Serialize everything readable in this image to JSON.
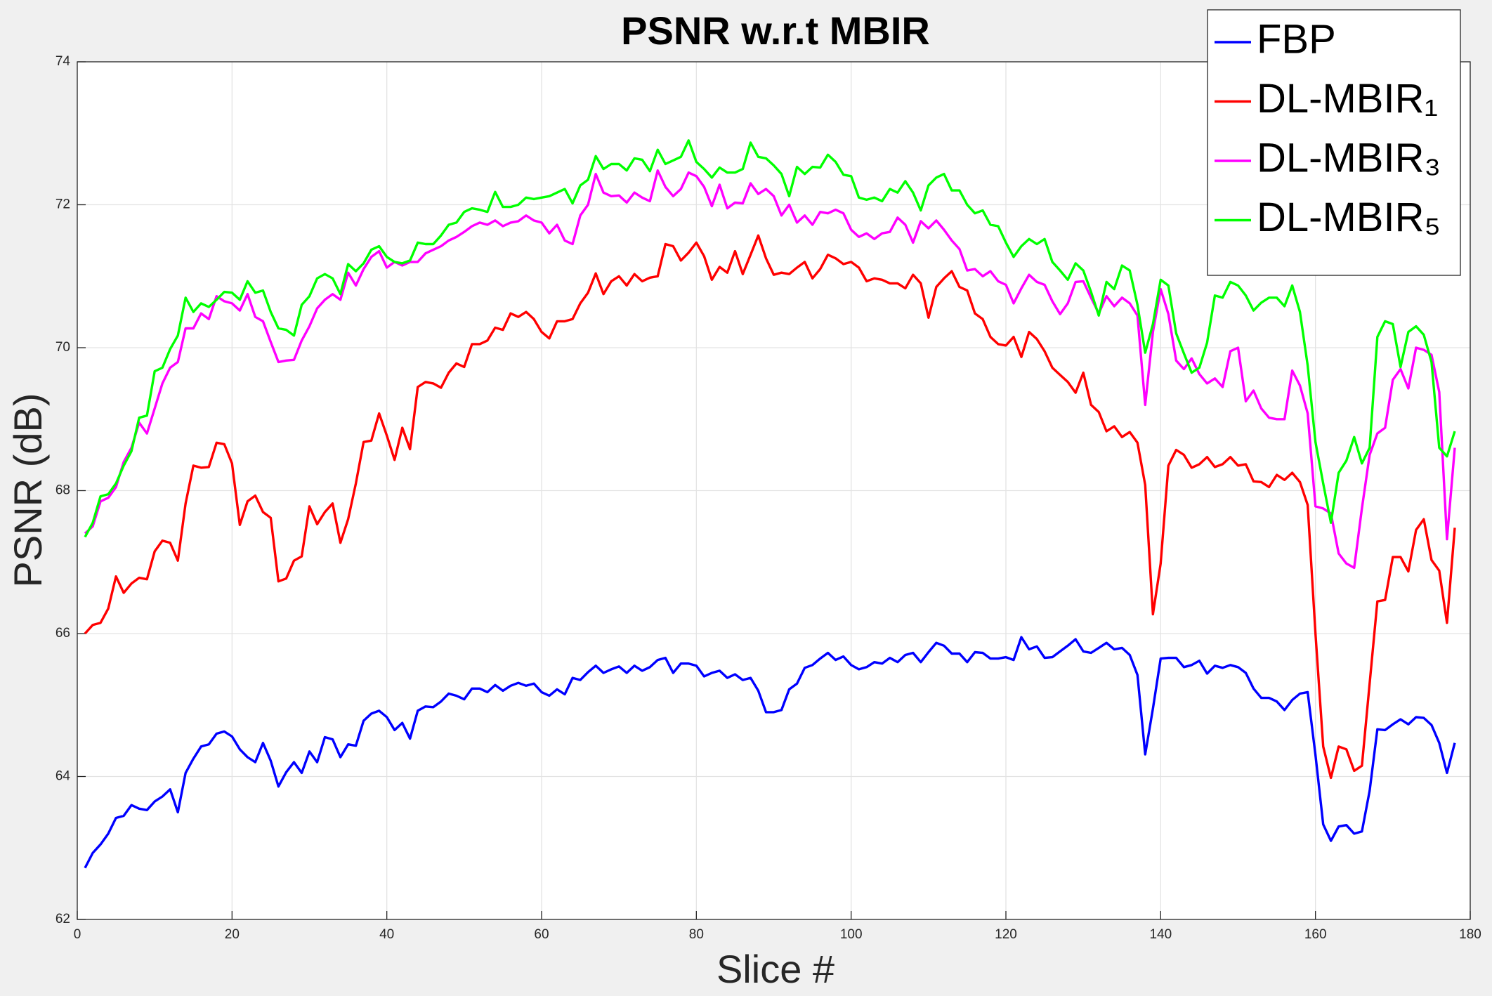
{
  "chart_data": {
    "type": "line",
    "title": "PSNR w.r.t MBIR",
    "xlabel": "Slice #",
    "ylabel": "PSNR (dB)",
    "xlim": [
      0,
      180
    ],
    "ylim": [
      62,
      74
    ],
    "xticks": [
      0,
      20,
      40,
      60,
      80,
      100,
      120,
      140,
      160,
      180
    ],
    "yticks": [
      62,
      64,
      66,
      68,
      70,
      72,
      74
    ],
    "grid": true,
    "legend": "northeast",
    "x": [
      1,
      2,
      3,
      4,
      5,
      6,
      7,
      8,
      9,
      10,
      11,
      12,
      13,
      14,
      15,
      16,
      17,
      18,
      19,
      20,
      21,
      22,
      23,
      24,
      25,
      26,
      27,
      28,
      29,
      30,
      31,
      32,
      33,
      34,
      35,
      36,
      37,
      38,
      39,
      40,
      41,
      42,
      43,
      44,
      45,
      46,
      47,
      48,
      49,
      50,
      51,
      52,
      53,
      54,
      55,
      56,
      57,
      58,
      59,
      60,
      61,
      62,
      63,
      64,
      65,
      66,
      67,
      68,
      69,
      70,
      71,
      72,
      73,
      74,
      75,
      76,
      77,
      78,
      79,
      80,
      81,
      82,
      83,
      84,
      85,
      86,
      87,
      88,
      89,
      90,
      91,
      92,
      93,
      94,
      95,
      96,
      97,
      98,
      99,
      100,
      101,
      102,
      103,
      104,
      105,
      106,
      107,
      108,
      109,
      110,
      111,
      112,
      113,
      114,
      115,
      116,
      117,
      118,
      119,
      120,
      121,
      122,
      123,
      124,
      125,
      126,
      127,
      128,
      129,
      130,
      131,
      132,
      133,
      134,
      135,
      136,
      137,
      138,
      139,
      140,
      141,
      142,
      143,
      144,
      145,
      146,
      147,
      148,
      149,
      150,
      151,
      152,
      153,
      154,
      155,
      156,
      157,
      158,
      159,
      160,
      161,
      162,
      163,
      164,
      165,
      166,
      167,
      168,
      169,
      170,
      171,
      172,
      173,
      174,
      175,
      176,
      177,
      178
    ],
    "series": [
      {
        "name": "FBP",
        "color": "#0000ff",
        "values": [
          62.72,
          62.93,
          63.05,
          63.2,
          63.42,
          63.45,
          63.6,
          63.55,
          63.53,
          63.65,
          63.72,
          63.82,
          63.5,
          64.05,
          64.25,
          64.42,
          64.45,
          64.6,
          64.63,
          64.56,
          64.38,
          64.27,
          64.2,
          64.47,
          64.22,
          63.86,
          64.06,
          64.2,
          64.05,
          64.35,
          64.2,
          64.55,
          64.52,
          64.27,
          64.45,
          64.43,
          64.78,
          64.88,
          64.92,
          64.83,
          64.65,
          64.75,
          64.53,
          64.92,
          64.98,
          64.97,
          65.05,
          65.16,
          65.13,
          65.08,
          65.23,
          65.23,
          65.18,
          65.28,
          65.2,
          65.27,
          65.31,
          65.27,
          65.3,
          65.18,
          65.13,
          65.22,
          65.15,
          65.38,
          65.35,
          65.46,
          65.55,
          65.45,
          65.5,
          65.54,
          65.45,
          65.55,
          65.48,
          65.53,
          65.63,
          65.66,
          65.45,
          65.58,
          65.58,
          65.55,
          65.4,
          65.45,
          65.48,
          65.38,
          65.43,
          65.35,
          65.38,
          65.2,
          64.9,
          64.9,
          64.93,
          65.22,
          65.3,
          65.52,
          65.56,
          65.65,
          65.73,
          65.63,
          65.68,
          65.56,
          65.5,
          65.53,
          65.6,
          65.58,
          65.66,
          65.6,
          65.7,
          65.73,
          65.6,
          65.74,
          65.87,
          65.83,
          65.72,
          65.72,
          65.6,
          65.74,
          65.73,
          65.65,
          65.65,
          65.67,
          65.63,
          65.95,
          65.78,
          65.82,
          65.66,
          65.67,
          65.75,
          65.83,
          65.92,
          65.75,
          65.73,
          65.8,
          65.87,
          65.78,
          65.8,
          65.7,
          65.42,
          64.31,
          64.95,
          65.65,
          65.66,
          65.66,
          65.53,
          65.56,
          65.62,
          65.44,
          65.55,
          65.52,
          65.56,
          65.53,
          65.45,
          65.23,
          65.1,
          65.1,
          65.05,
          64.93,
          65.07,
          65.16,
          65.18,
          64.3,
          63.33,
          63.1,
          63.3,
          63.32,
          63.2,
          63.23,
          63.8,
          64.66,
          64.65,
          64.73,
          64.8,
          64.73,
          64.83,
          64.82,
          64.72,
          64.47,
          64.05,
          64.47
        ]
      },
      {
        "name": "DL-MBIR₁",
        "color": "#ff0000",
        "values": [
          66.0,
          66.12,
          66.15,
          66.35,
          66.8,
          66.57,
          66.7,
          66.78,
          66.76,
          67.15,
          67.3,
          67.27,
          67.02,
          67.82,
          68.35,
          68.32,
          68.33,
          68.67,
          68.65,
          68.38,
          67.52,
          67.85,
          67.93,
          67.7,
          67.62,
          66.73,
          66.77,
          67.02,
          67.08,
          67.78,
          67.53,
          67.7,
          67.82,
          67.27,
          67.6,
          68.1,
          68.68,
          68.7,
          69.08,
          68.77,
          68.43,
          68.88,
          68.58,
          69.45,
          69.52,
          69.5,
          69.44,
          69.65,
          69.78,
          69.73,
          70.05,
          70.05,
          70.1,
          70.28,
          70.25,
          70.48,
          70.43,
          70.5,
          70.4,
          70.22,
          70.13,
          70.37,
          70.37,
          70.4,
          70.62,
          70.77,
          71.04,
          70.75,
          70.93,
          71.0,
          70.87,
          71.03,
          70.93,
          70.98,
          71.0,
          71.45,
          71.42,
          71.22,
          71.33,
          71.47,
          71.28,
          70.95,
          71.13,
          71.05,
          71.35,
          71.03,
          71.3,
          71.57,
          71.25,
          71.02,
          71.05,
          71.03,
          71.12,
          71.2,
          70.97,
          71.1,
          71.3,
          71.25,
          71.17,
          71.2,
          71.12,
          70.93,
          70.97,
          70.95,
          70.9,
          70.9,
          70.83,
          71.02,
          70.9,
          70.42,
          70.85,
          70.97,
          71.07,
          70.85,
          70.8,
          70.48,
          70.4,
          70.15,
          70.05,
          70.03,
          70.15,
          69.87,
          70.22,
          70.12,
          69.95,
          69.72,
          69.62,
          69.52,
          69.37,
          69.65,
          69.2,
          69.1,
          68.83,
          68.9,
          68.75,
          68.82,
          68.67,
          68.08,
          66.27,
          66.98,
          68.35,
          68.57,
          68.5,
          68.32,
          68.37,
          68.47,
          68.33,
          68.37,
          68.47,
          68.35,
          68.37,
          68.13,
          68.12,
          68.05,
          68.22,
          68.15,
          68.25,
          68.12,
          67.8,
          66.0,
          64.42,
          63.98,
          64.42,
          64.38,
          64.08,
          64.15,
          65.3,
          66.45,
          66.47,
          67.07,
          67.07,
          66.87,
          67.45,
          67.6,
          67.03,
          66.88,
          66.15,
          67.48
        ]
      },
      {
        "name": "DL-MBIR₃",
        "color": "#ff00ff",
        "values": [
          67.4,
          67.5,
          67.85,
          67.9,
          68.05,
          68.4,
          68.6,
          68.95,
          68.8,
          69.15,
          69.5,
          69.72,
          69.8,
          70.27,
          70.27,
          70.48,
          70.4,
          70.72,
          70.65,
          70.62,
          70.52,
          70.75,
          70.43,
          70.37,
          70.08,
          69.8,
          69.82,
          69.83,
          70.1,
          70.3,
          70.55,
          70.67,
          70.75,
          70.67,
          71.05,
          70.87,
          71.1,
          71.27,
          71.35,
          71.12,
          71.2,
          71.15,
          71.2,
          71.2,
          71.32,
          71.37,
          71.42,
          71.5,
          71.55,
          71.62,
          71.7,
          71.75,
          71.72,
          71.78,
          71.7,
          71.75,
          71.77,
          71.85,
          71.78,
          71.75,
          71.6,
          71.72,
          71.5,
          71.45,
          71.85,
          72.0,
          72.43,
          72.17,
          72.12,
          72.13,
          72.03,
          72.17,
          72.1,
          72.05,
          72.48,
          72.25,
          72.12,
          72.22,
          72.45,
          72.4,
          72.25,
          71.98,
          72.28,
          71.95,
          72.03,
          72.02,
          72.3,
          72.15,
          72.22,
          72.12,
          71.85,
          72.0,
          71.75,
          71.85,
          71.72,
          71.9,
          71.88,
          71.93,
          71.88,
          71.65,
          71.55,
          71.6,
          71.52,
          71.6,
          71.62,
          71.82,
          71.72,
          71.47,
          71.77,
          71.67,
          71.78,
          71.65,
          71.5,
          71.38,
          71.08,
          71.1,
          71.0,
          71.07,
          70.93,
          70.88,
          70.62,
          70.83,
          71.02,
          70.92,
          70.88,
          70.65,
          70.47,
          70.62,
          70.92,
          70.93,
          70.7,
          70.48,
          70.72,
          70.58,
          70.7,
          70.62,
          70.45,
          69.2,
          70.22,
          70.82,
          70.47,
          69.82,
          69.7,
          69.85,
          69.63,
          69.5,
          69.57,
          69.45,
          69.95,
          70.0,
          69.25,
          69.4,
          69.15,
          69.02,
          69.0,
          69.0,
          69.68,
          69.47,
          69.08,
          67.78,
          67.75,
          67.68,
          67.12,
          66.98,
          66.92,
          67.75,
          68.5,
          68.8,
          68.88,
          69.55,
          69.7,
          69.43,
          70.0,
          69.97,
          69.9,
          69.38,
          67.32,
          68.6
        ]
      },
      {
        "name": "DL-MBIR₅",
        "color": "#00ff00",
        "values": [
          67.35,
          67.55,
          67.92,
          67.95,
          68.1,
          68.35,
          68.55,
          69.02,
          69.05,
          69.67,
          69.72,
          69.98,
          70.17,
          70.7,
          70.5,
          70.62,
          70.57,
          70.67,
          70.78,
          70.77,
          70.67,
          70.93,
          70.77,
          70.8,
          70.5,
          70.27,
          70.25,
          70.17,
          70.6,
          70.72,
          70.97,
          71.03,
          70.97,
          70.75,
          71.17,
          71.07,
          71.18,
          71.37,
          71.42,
          71.27,
          71.2,
          71.18,
          71.22,
          71.47,
          71.45,
          71.45,
          71.57,
          71.72,
          71.75,
          71.9,
          71.95,
          71.93,
          71.9,
          72.18,
          71.97,
          71.97,
          72.0,
          72.1,
          72.08,
          72.1,
          72.12,
          72.17,
          72.22,
          72.02,
          72.27,
          72.35,
          72.68,
          72.5,
          72.57,
          72.57,
          72.48,
          72.65,
          72.63,
          72.47,
          72.77,
          72.57,
          72.62,
          72.67,
          72.9,
          72.6,
          72.5,
          72.38,
          72.52,
          72.45,
          72.45,
          72.5,
          72.87,
          72.67,
          72.65,
          72.55,
          72.43,
          72.12,
          72.53,
          72.43,
          72.53,
          72.52,
          72.7,
          72.6,
          72.42,
          72.4,
          72.1,
          72.07,
          72.1,
          72.05,
          72.22,
          72.17,
          72.33,
          72.17,
          71.92,
          72.27,
          72.38,
          72.43,
          72.2,
          72.2,
          72.0,
          71.88,
          71.92,
          71.72,
          71.7,
          71.47,
          71.27,
          71.42,
          71.52,
          71.45,
          71.52,
          71.2,
          71.08,
          70.95,
          71.18,
          71.08,
          70.78,
          70.45,
          70.92,
          70.82,
          71.15,
          71.08,
          70.6,
          69.93,
          70.33,
          70.95,
          70.87,
          70.2,
          69.92,
          69.65,
          69.72,
          70.07,
          70.73,
          70.7,
          70.92,
          70.87,
          70.73,
          70.52,
          70.63,
          70.7,
          70.7,
          70.58,
          70.87,
          70.5,
          69.75,
          68.68,
          68.1,
          67.55,
          68.25,
          68.42,
          68.75,
          68.38,
          68.6,
          70.15,
          70.37,
          70.33,
          69.73,
          70.22,
          70.3,
          70.18,
          69.8,
          68.6,
          68.48,
          68.83
        ]
      }
    ]
  }
}
